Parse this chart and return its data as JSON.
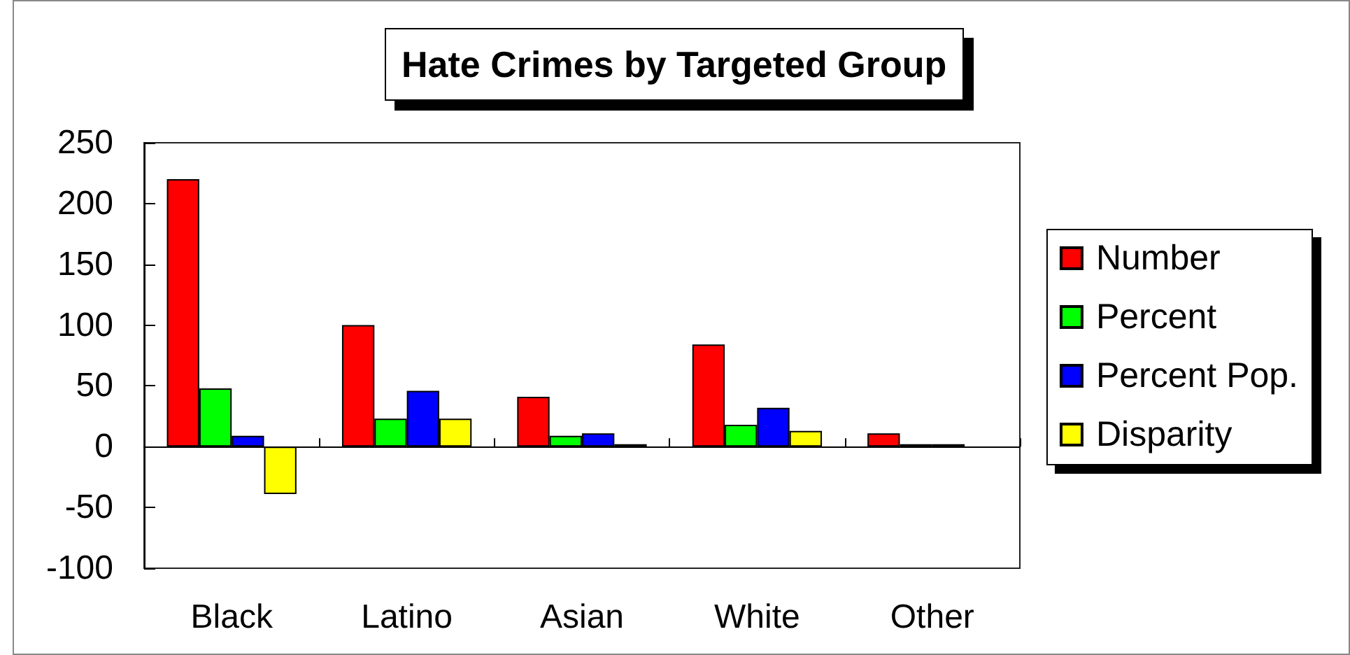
{
  "chart_data": {
    "type": "bar",
    "title": "Hate Crimes by Targeted Group",
    "categories": [
      "Black",
      "Latino",
      "Asian",
      "White",
      "Other"
    ],
    "series": [
      {
        "name": "Number",
        "color": "#ff0000",
        "values": [
          220,
          100,
          41,
          84,
          11
        ]
      },
      {
        "name": "Percent",
        "color": "#00ff00",
        "values": [
          48,
          23,
          9,
          18,
          2
        ]
      },
      {
        "name": "Percent Pop.",
        "color": "#0000ff",
        "values": [
          9,
          46,
          11,
          32,
          2
        ]
      },
      {
        "name": "Disparity",
        "color": "#ffff00",
        "values": [
          -39,
          23,
          2,
          13,
          null
        ]
      }
    ],
    "ylim": [
      -100,
      250
    ],
    "yticks": [
      -100,
      -50,
      0,
      50,
      100,
      150,
      200,
      250
    ],
    "legend": "right"
  }
}
